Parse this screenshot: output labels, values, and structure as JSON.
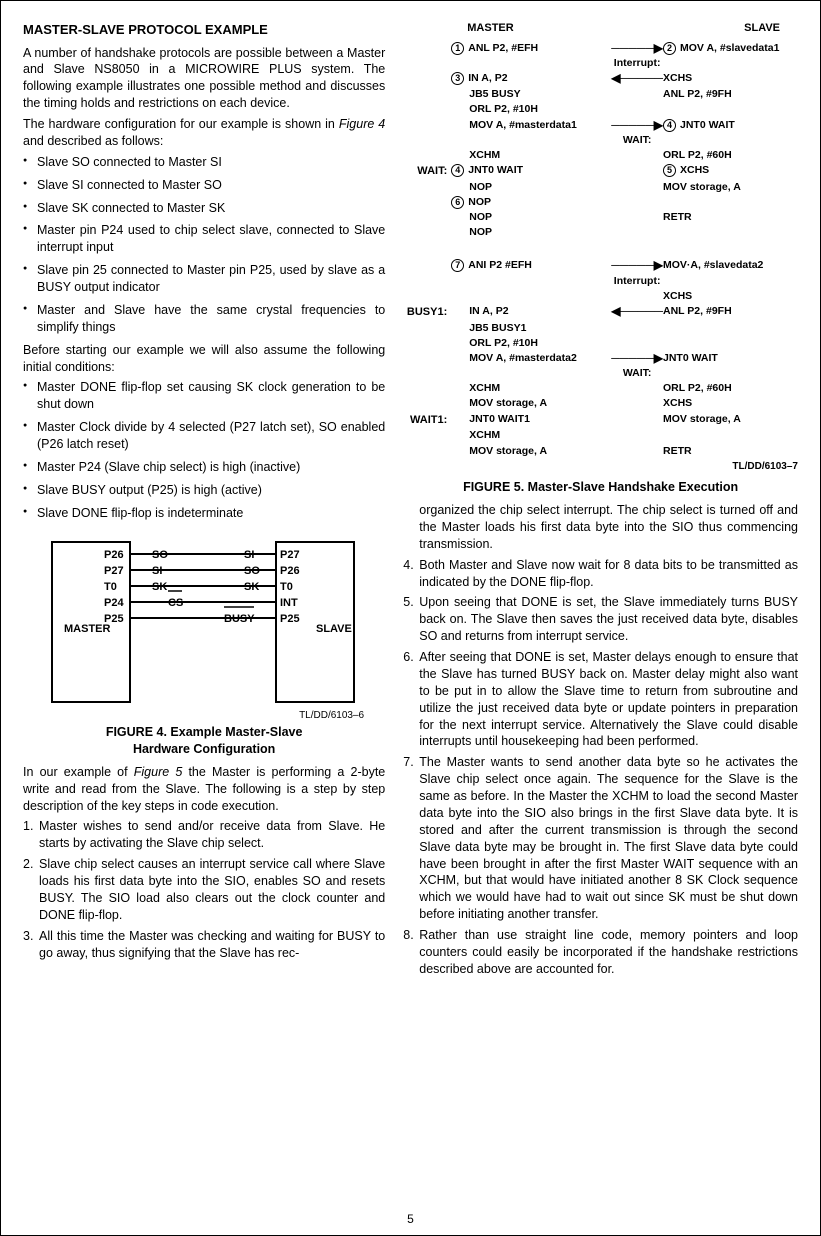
{
  "left": {
    "heading": "MASTER-SLAVE PROTOCOL EXAMPLE",
    "p1": "A number of handshake protocols are possible between a Master and Slave NS8050 in a MICROWIRE PLUS system. The following example illustrates one possible method and discusses the timing holds and restrictions on each device.",
    "p2_pre": "The hardware configuration for our example is shown in ",
    "p2_fig": "Figure 4",
    "p2_post": " and described as follows:",
    "bullets1": [
      "Slave SO connected to Master SI",
      "Slave SI connected to Master SO",
      "Slave SK connected to Master SK",
      "Master pin P24 used to chip select slave, connected to Slave interrupt input",
      "Slave pin 25 connected to Master pin P25, used by slave as a BUSY output indicator",
      "Master and Slave have the same crystal frequencies to simplify things"
    ],
    "p3": "Before starting our example we will also assume the following initial conditions:",
    "bullets2": [
      "Master DONE flip-flop set causing SK clock generation to be shut down",
      "Master Clock divide by 4 selected (P27 latch set), SO enabled (P26 latch reset)",
      "Master P24 (Slave chip select) is high (inactive)",
      "Slave BUSY output (P25) is high (active)",
      "Slave DONE flip-flop is indeterminate"
    ],
    "fig4": {
      "id": "TL/DD/6103–6",
      "caption1": "FIGURE 4. Example Master-Slave",
      "caption2": "Hardware Configuration",
      "master": "MASTER",
      "slave": "SLAVE",
      "master_pins": [
        "P26",
        "P27",
        "T0",
        "P24",
        "P25"
      ],
      "slave_pins": [
        "P27",
        "P26",
        "T0",
        "INT",
        "P25"
      ],
      "sigs_left": [
        "SO",
        "SI",
        "SK",
        "CS",
        ""
      ],
      "sigs_right": [
        "SI",
        "SO",
        "SK",
        "",
        ""
      ],
      "busy": "BUSY",
      "overbar": true
    },
    "p4_pre": "In our example of ",
    "p4_fig": "Figure 5",
    "p4_post": " the Master is performing a 2-byte write and read from the Slave. The following is a step by step description of the key steps in code execution.",
    "steps_a": [
      "Master wishes to send and/or receive data from Slave. He starts by activating the Slave chip select.",
      "Slave chip select causes an interrupt service call where Slave loads his first data byte into the SIO, enables SO and resets BUSY. The SIO load also clears out the clock counter and DONE flip-flop.",
      "All this time the Master was checking and waiting for BUSY to go away, thus signifying that the Slave has rec-"
    ]
  },
  "right": {
    "fig5": {
      "hdr_master": "MASTER",
      "hdr_slave": "SLAVE",
      "master_block1": [
        {
          "c": "1",
          "t": "ANL P2, #EFH"
        },
        {
          "c": "3",
          "t": "IN A, P2"
        },
        {
          "t": "JB5 BUSY"
        },
        {
          "t": "ORL P2, #10H"
        },
        {
          "t": "MOV A, #masterdata1"
        },
        {
          "t": "XCHM"
        },
        {
          "c": "4",
          "t": "JNT0 WAIT",
          "pre": "WAIT:"
        },
        {
          "t": "NOP"
        },
        {
          "c": "6",
          "t": "NOP"
        },
        {
          "t": "NOP"
        },
        {
          "t": "NOP"
        }
      ],
      "slave_block1": [
        {
          "c": "2",
          "t": "MOV A, #slavedata1",
          "pre": "Interrupt:"
        },
        {
          "t": "XCHS"
        },
        {
          "t": "ANL P2, #9FH"
        },
        {
          "blank": true
        },
        {
          "c": "4",
          "t": "JNT0 WAIT",
          "pre": "WAIT:"
        },
        {
          "t": "ORL P2, #60H"
        },
        {
          "c": "5",
          "t": "XCHS"
        },
        {
          "t": "MOV storage, A"
        },
        {
          "blank": true
        },
        {
          "t": "RETR"
        }
      ],
      "master_block2": [
        {
          "c": "7",
          "t": "ANI P2 #EFH"
        },
        {
          "blank": true
        },
        {
          "t": "IN A, P2",
          "pre": "BUSY1:"
        },
        {
          "t": "JB5 BUSY1"
        },
        {
          "t": "ORL P2, #10H"
        },
        {
          "t": "MOV A, #masterdata2"
        },
        {
          "t": "XCHM"
        },
        {
          "t": "MOV storage, A"
        },
        {
          "t": "JNT0 WAIT1",
          "pre": "WAIT1:"
        },
        {
          "t": "XCHM"
        },
        {
          "t": "MOV storage, A"
        }
      ],
      "slave_block2": [
        {
          "t": "MOV·A, #slavedata2",
          "pre": "Interrupt:"
        },
        {
          "t": "XCHS"
        },
        {
          "t": "ANL P2, #9FH"
        },
        {
          "blank": true
        },
        {
          "blank": true
        },
        {
          "t": "JNT0 WAIT",
          "pre": "WAIT:"
        },
        {
          "t": "ORL P2, #60H"
        },
        {
          "t": "XCHS"
        },
        {
          "t": "MOV storage, A"
        },
        {
          "blank": true
        },
        {
          "t": "RETR"
        }
      ],
      "id": "TL/DD/6103–7",
      "caption": "FIGURE 5. Master-Slave Handshake Execution"
    },
    "p_cont": "organized the chip select interrupt. The chip select is turned off and the Master loads his first data byte into the SIO thus commencing transmission.",
    "steps_b": [
      "Both Master and Slave now wait for 8 data bits to be transmitted as indicated by the DONE flip-flop.",
      "Upon seeing that DONE is set, the Slave immediately turns BUSY back on. The Slave then saves the just received data byte, disables SO and returns from interrupt service.",
      "After seeing that DONE is set, Master delays enough to ensure that the Slave has turned BUSY back on. Master delay might also want to be put in to allow the Slave time to return from subroutine and utilize the just received data byte or update pointers in preparation for the next interrupt service. Alternatively the Slave could disable interrupts until housekeeping had been performed.",
      "The Master wants to send another data byte so he activates the Slave chip select once again. The sequence for the Slave is the same as before. In the Master the XCHM to load the second Master data byte into the SIO also brings in the first Slave data byte. It is stored and after the current transmission is through the second Slave data byte may be brought in. The first Slave data byte could have been brought in after the first Master WAIT sequence with an XCHM, but that would have initiated another 8 SK Clock sequence which we would have had to wait out since SK must be shut down before initiating another transfer.",
      "Rather than use straight line code, memory pointers and loop counters could easily be incorporated if the handshake restrictions described above are accounted for."
    ]
  },
  "page": "5"
}
